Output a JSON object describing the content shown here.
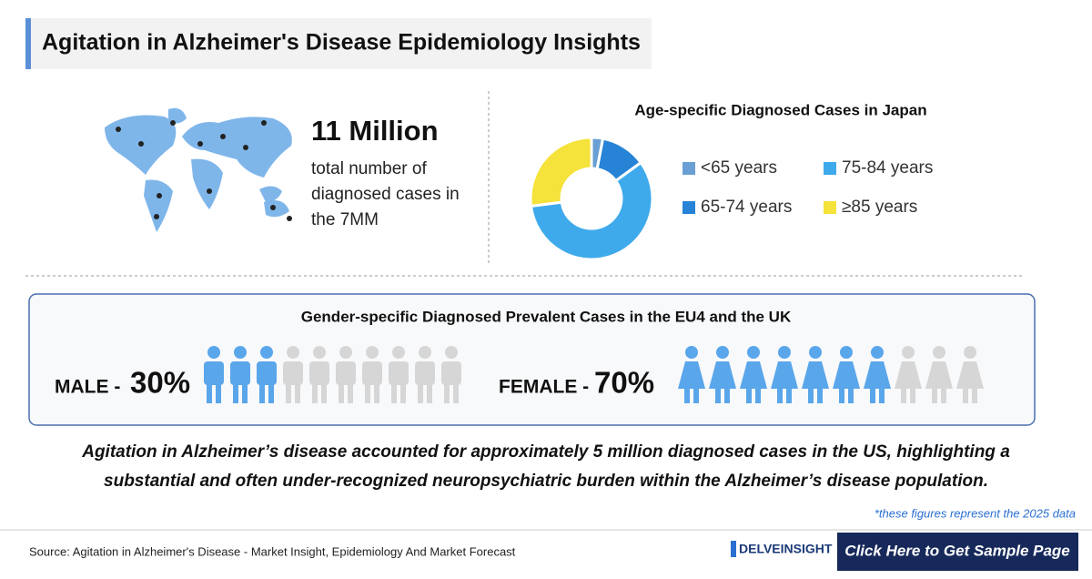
{
  "header": {
    "title": "Agitation in Alzheimer's Disease Epidemiology Insights"
  },
  "world": {
    "headline": "11 Million",
    "description": [
      "total number of",
      "diagnosed cases in",
      "the 7MM"
    ]
  },
  "chart_data": {
    "type": "pie",
    "title": "Age-specific Diagnosed Cases in Japan",
    "categories": [
      "<65 years",
      "65-74 years",
      "75-84 years",
      "≥85 years"
    ],
    "values": [
      3,
      12,
      58,
      27
    ],
    "colors": [
      "#6a9fd3",
      "#2683d6",
      "#3faaeb",
      "#f5e23a"
    ],
    "donut": true
  },
  "gender": {
    "title": "Gender-specific Diagnosed Prevalent Cases in the EU4 and the UK",
    "male": {
      "label": "MALE -",
      "value": 30,
      "value_label": "30%"
    },
    "female": {
      "label": "FEMALE -",
      "value": 70,
      "value_label": "70%"
    }
  },
  "summary": [
    "Agitation in Alzheimer’s disease accounted for approximately 5 million diagnosed cases in the US, highlighting a",
    "substantial and often under-recognized neuropsychiatric burden within the Alzheimer’s disease population."
  ],
  "footnote": "*these figures represent the 2025 data",
  "footer": {
    "source": "Source: Agitation in Alzheimer's Disease - Market Insight, Epidemiology And Market Forecast",
    "logo": "DELVEINSIGHT",
    "button": "Click Here to Get Sample Page"
  }
}
